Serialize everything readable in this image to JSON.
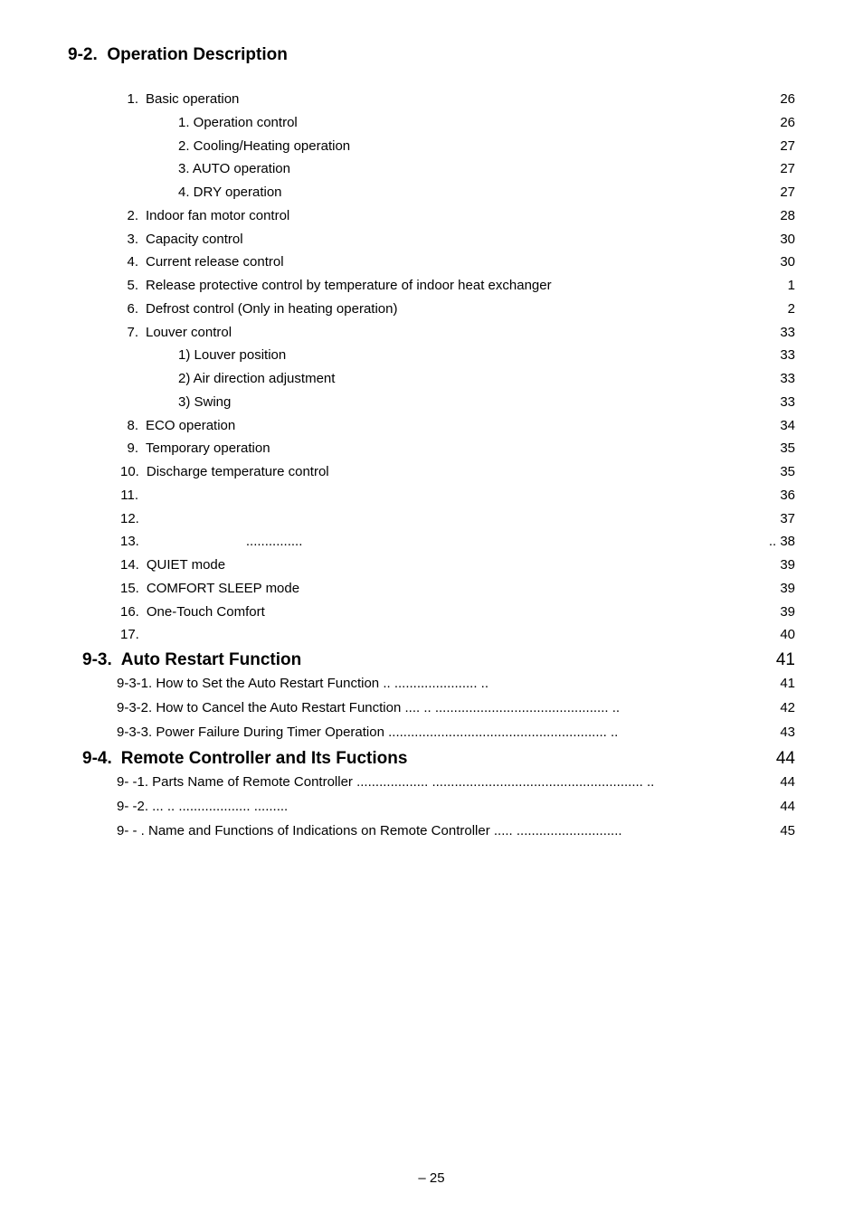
{
  "heading": {
    "num": "9-2.",
    "title": "Operation Description"
  },
  "items": [
    {
      "type": "row",
      "indent": 0,
      "num": "1.",
      "txt": "Basic operation",
      "dots": true,
      "pg": "26"
    },
    {
      "type": "row",
      "indent": 1,
      "num": "",
      "txt": "1. Operation control",
      "dots": true,
      "pg": "26"
    },
    {
      "type": "row",
      "indent": 1,
      "num": "",
      "txt": "2. Cooling/Heating operation",
      "dots": true,
      "pg": "27"
    },
    {
      "type": "row",
      "indent": 1,
      "num": "",
      "txt": "3. AUTO operation",
      "dots": true,
      "pg": "27"
    },
    {
      "type": "row",
      "indent": 1,
      "num": "",
      "txt": "4. DRY operation",
      "dots": true,
      "pg": "27"
    },
    {
      "type": "row",
      "indent": 0,
      "num": "2.",
      "txt": "Indoor fan motor control",
      "dots": true,
      "pg": "28"
    },
    {
      "type": "row",
      "indent": 0,
      "num": "3.",
      "txt": "Capacity control",
      "dots": true,
      "pg": "30"
    },
    {
      "type": "row",
      "indent": 0,
      "num": "4.",
      "txt": "Current release control",
      "dots": true,
      "pg": "30"
    },
    {
      "type": "row",
      "indent": 0,
      "num": "5.",
      "txt": "Release protective control by temperature of indoor heat exchanger",
      "dots": true,
      "pg": "1"
    },
    {
      "type": "row",
      "indent": 0,
      "num": "6.",
      "txt": "Defrost control (Only in heating operation)",
      "dots": true,
      "pg": "2"
    },
    {
      "type": "row",
      "indent": 0,
      "num": "7.",
      "txt": "Louver control",
      "dots": true,
      "pg": "33"
    },
    {
      "type": "row",
      "indent": 1,
      "num": "",
      "txt": "1) Louver position",
      "dots": true,
      "pg": "33"
    },
    {
      "type": "row",
      "indent": 1,
      "num": "",
      "txt": "2) Air direction adjustment",
      "dots": true,
      "pg": "33"
    },
    {
      "type": "row",
      "indent": 1,
      "num": "",
      "txt": "3) Swing",
      "dots": true,
      "pg": "33"
    },
    {
      "type": "row",
      "indent": 0,
      "num": "8.",
      "txt": "ECO operation",
      "dots": true,
      "pg": "34"
    },
    {
      "type": "row",
      "indent": 0,
      "num": "9.",
      "txt": "Temporary operation",
      "dots": true,
      "pg": "35"
    },
    {
      "type": "row",
      "indent": 0,
      "num": "10.",
      "txt": "Discharge temperature control",
      "dots": true,
      "pg": "35"
    },
    {
      "type": "row",
      "indent": 0,
      "num": "11.",
      "txt": "",
      "dots": true,
      "pg": "36"
    },
    {
      "type": "row",
      "indent": 0,
      "num": "12.",
      "txt": "",
      "dots": true,
      "pg": "37"
    },
    {
      "type": "row",
      "indent": 0,
      "num": "13.",
      "txt": "",
      "mid": "...............",
      "dots": true,
      "pg": ".. 38"
    },
    {
      "type": "row",
      "indent": 0,
      "num": "14.",
      "txt": "QUIET mode",
      "dots": true,
      "pg": "39"
    },
    {
      "type": "row",
      "indent": 0,
      "num": "15.",
      "txt": "COMFORT SLEEP mode",
      "dots": true,
      "pg": "39"
    },
    {
      "type": "row",
      "indent": 0,
      "num": "16.",
      "txt": "One-Touch Comfort",
      "dots": true,
      "pg": "39"
    },
    {
      "type": "row",
      "indent": 0,
      "num": "17.",
      "txt": "",
      "dots": true,
      "pg": "40"
    }
  ],
  "section93": {
    "num": "9-3.",
    "title": "Auto Restart Function",
    "pg": "41"
  },
  "subs93": [
    {
      "txt": "9-3-1. How to Set the Auto Restart Function  ..   ......................  ..",
      "pg": "41"
    },
    {
      "txt": "9-3-2. How to Cancel the Auto Restart Function   ....  ..  ..............................................  ..",
      "pg": "42"
    },
    {
      "txt": "9-3-3. Power Failure During  Timer Operation   ..........................................................  ..",
      "pg": "43"
    }
  ],
  "section94": {
    "num": "9-4.",
    "title": "Remote Controller and Its Fuctions",
    "pg": "44"
  },
  "subs94": [
    {
      "txt": "9-  -1. Parts Name of Remote Controller  ...................   ........................................................  ..",
      "pg": "44"
    },
    {
      "txt": "9-  -2.                                                                 ...                                                   ..     ...................  .........",
      "pg": "44"
    },
    {
      "txt": "9-  -  . Name and Functions of Indications on Remote Controller  .....      ............................",
      "pg": "45"
    }
  ],
  "footer": "– 25"
}
